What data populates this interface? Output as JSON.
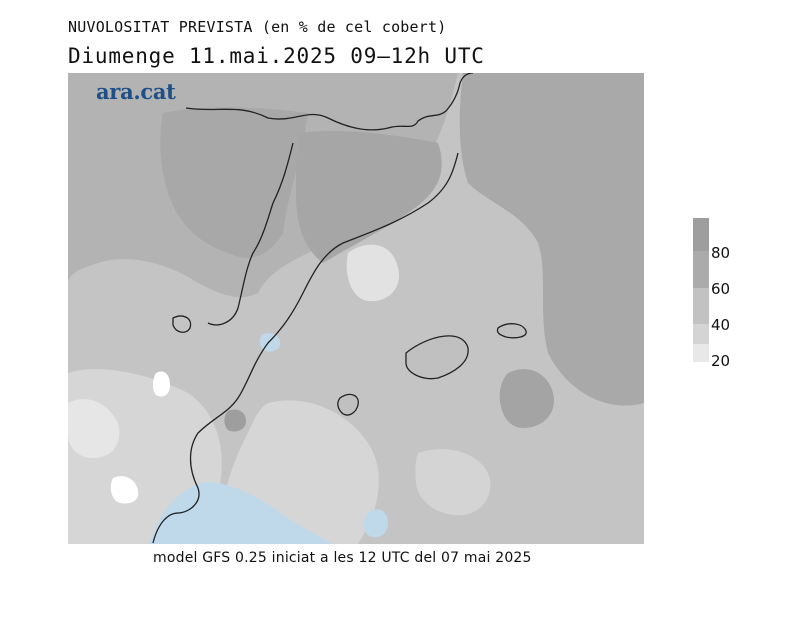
{
  "header": {
    "title": "NUVOLOSITAT PREVISTA (en % de cel cobert)",
    "subtitle": "Diumenge  11.mai.2025 09–12h UTC"
  },
  "map": {
    "logo": "ara.cat",
    "region": "Catalunya i les Balears",
    "palette": {
      "sea": "#bfd9ea",
      "lt20": "#ececec",
      "c20_40": "#d9d9d9",
      "c40_60": "#c2c2c2",
      "c60_80": "#ababab",
      "c80_100": "#9a9a9a",
      "border": "#222222"
    }
  },
  "legend": {
    "labels": [
      "80",
      "60",
      "40",
      "20"
    ],
    "colors": [
      "#9e9e9e",
      "#ababab",
      "#c2c2c2",
      "#d4d4d4",
      "#e8e8e8"
    ]
  },
  "footer": {
    "text": "model GFS 0.25 iniciat a les 12 UTC del 07 mai 2025"
  }
}
